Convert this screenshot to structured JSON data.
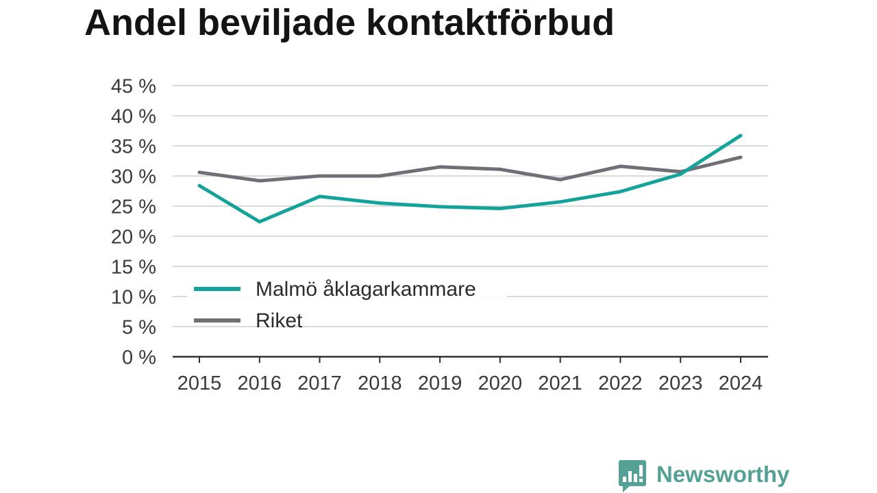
{
  "colors": {
    "title": "#141414",
    "tick_text": "#3a3a3a",
    "grid": "#dadada",
    "axis": "#2e2e2e",
    "legend_background": "#ffffff",
    "brand": "#55a196"
  },
  "chart_data": {
    "type": "line",
    "title": "Andel beviljade kontaktförbud",
    "xlabel": "",
    "ylabel": "",
    "x": [
      "2015",
      "2016",
      "2017",
      "2018",
      "2019",
      "2020",
      "2021",
      "2022",
      "2023",
      "2024"
    ],
    "ylim": [
      0,
      45
    ],
    "yticks": [
      0,
      5,
      10,
      15,
      20,
      25,
      30,
      35,
      40,
      45
    ],
    "ytick_labels": [
      "0 %",
      "5 %",
      "10 %",
      "15 %",
      "20 %",
      "25 %",
      "30 %",
      "35 %",
      "40 %",
      "45 %"
    ],
    "grid": true,
    "legend_position": "lower-left",
    "series": [
      {
        "name": "Malmö åklagarkammare",
        "color": "#14a39a",
        "values": [
          28.4,
          22.4,
          26.6,
          25.5,
          24.9,
          24.6,
          25.7,
          27.4,
          30.3,
          36.7
        ]
      },
      {
        "name": "Riket",
        "color": "#6f6f75",
        "values": [
          30.6,
          29.2,
          30.0,
          30.0,
          31.5,
          31.1,
          29.4,
          31.6,
          30.7,
          33.1
        ]
      }
    ]
  },
  "brand": {
    "name": "Newsworthy",
    "icon": "bar-chart-speech-bubble-icon"
  }
}
